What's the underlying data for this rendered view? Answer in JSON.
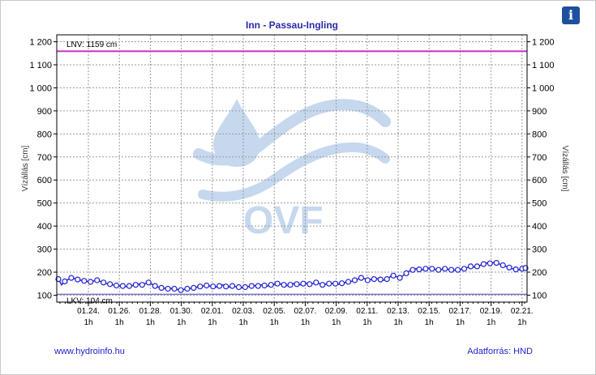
{
  "info_icon": "info-icon",
  "footer": {
    "left_link": "www.hydroinfo.hu",
    "right_text": "Adatforrás: HND"
  },
  "watermark": {
    "text": "OVF"
  },
  "colors": {
    "series": "#1f1fd0",
    "lnv_line": "#cc33cc",
    "lkv_line": "#7777cc",
    "title": "#2a2aa8",
    "watermark": "#c6d8ee"
  },
  "chart_data": {
    "type": "line",
    "title": "Inn - Passau-Ingling",
    "ylabel_left": "Vízállás [cm]",
    "ylabel_right": "Vízállás [cm]",
    "ylim": [
      70,
      1230
    ],
    "yticks": [
      {
        "value": 100,
        "label": "100"
      },
      {
        "value": 200,
        "label": "200"
      },
      {
        "value": 300,
        "label": "300"
      },
      {
        "value": 400,
        "label": "400"
      },
      {
        "value": 500,
        "label": "500"
      },
      {
        "value": 600,
        "label": "600"
      },
      {
        "value": 700,
        "label": "700"
      },
      {
        "value": 800,
        "label": "800"
      },
      {
        "value": 900,
        "label": "900"
      },
      {
        "value": 1000,
        "label": "1 000"
      },
      {
        "value": 1100,
        "label": "1 100"
      },
      {
        "value": 1200,
        "label": "1 200"
      }
    ],
    "xticks": [
      {
        "date": "01.24.",
        "hour": "1h"
      },
      {
        "date": "01.26.",
        "hour": "1h"
      },
      {
        "date": "01.28.",
        "hour": "1h"
      },
      {
        "date": "01.30.",
        "hour": "1h"
      },
      {
        "date": "02.01.",
        "hour": "1h"
      },
      {
        "date": "02.03.",
        "hour": "1h"
      },
      {
        "date": "02.05.",
        "hour": "1h"
      },
      {
        "date": "02.07.",
        "hour": "1h"
      },
      {
        "date": "02.09.",
        "hour": "1h"
      },
      {
        "date": "02.11.",
        "hour": "1h"
      },
      {
        "date": "02.13.",
        "hour": "1h"
      },
      {
        "date": "02.15.",
        "hour": "1h"
      },
      {
        "date": "02.17.",
        "hour": "1h"
      },
      {
        "date": "02.19.",
        "hour": "1h"
      },
      {
        "date": "02.21.",
        "hour": "1h"
      }
    ],
    "reference_lines": [
      {
        "name": "LNV",
        "label": "LNV: 1159 cm",
        "value": 1159
      },
      {
        "name": "LKV",
        "label": "LKV: 104 cm",
        "value": 104
      }
    ],
    "grid": true,
    "series": [
      {
        "values": [
          170,
          145,
          160,
          168,
          175,
          172,
          168,
          165,
          162,
          160,
          158,
          162,
          165,
          160,
          155,
          150,
          148,
          145,
          142,
          140,
          140,
          138,
          140,
          142,
          145,
          148,
          145,
          150,
          155,
          148,
          140,
          135,
          132,
          130,
          128,
          130,
          128,
          125,
          122,
          125,
          128,
          130,
          132,
          135,
          138,
          140,
          142,
          140,
          138,
          135,
          140,
          145,
          138,
          135,
          140,
          138,
          135,
          132,
          135,
          138,
          140,
          142,
          140,
          145,
          142,
          140,
          145,
          148,
          150,
          148,
          145,
          142,
          145,
          150,
          148,
          145,
          150,
          152,
          148,
          150,
          155,
          150,
          145,
          148,
          150,
          152,
          150,
          148,
          152,
          155,
          158,
          160,
          165,
          170,
          175,
          172,
          165,
          168,
          170,
          172,
          168,
          165,
          170,
          180,
          185,
          180,
          175,
          185,
          195,
          205,
          210,
          215,
          212,
          210,
          215,
          218,
          215,
          212,
          210,
          212,
          215,
          212,
          210,
          208,
          210,
          212,
          215,
          220,
          225,
          222,
          225,
          230,
          235,
          240,
          238,
          242,
          240,
          235,
          230,
          225,
          220,
          215,
          212,
          210,
          215,
          218
        ]
      }
    ]
  }
}
